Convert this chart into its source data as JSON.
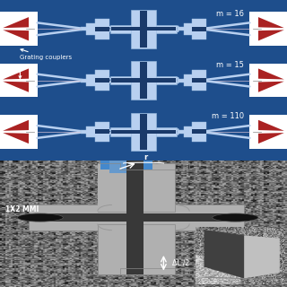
{
  "top_bg": "#1e4e8c",
  "top_bg_alt": "#1a4585",
  "wg_light": "#b8d0f0",
  "wg_mid": "#7aaad8",
  "wg_dark": "#1a3a6a",
  "white": "#ffffff",
  "red_coupler": "#aa2222",
  "sem_bg_dark": "#606060",
  "sem_bg_mid": "#888888",
  "sem_device": "#b8b8b8",
  "sem_device_dark": "#404040",
  "sem_inner": "#707070",
  "inset_bg": "#c8c8c8",
  "text_white": "#ffffff",
  "label_m16": "m = 16",
  "label_m15": "m = 15",
  "label_m110": "m = 110",
  "label_grating": "Grating couplers",
  "label_mmi": "1X2 MMI",
  "label_r": "r",
  "label_dl": "ΔL /2",
  "fig_w": 3.2,
  "fig_h": 3.2,
  "dpi": 100
}
